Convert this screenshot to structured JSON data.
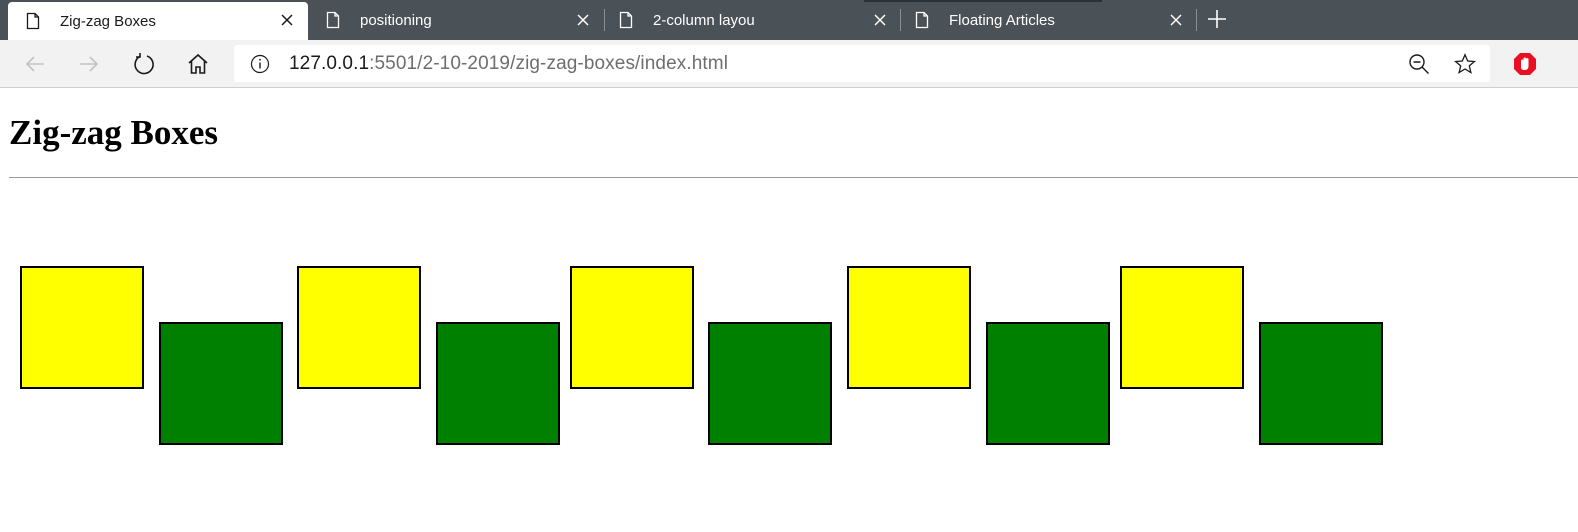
{
  "browser": {
    "tabs": [
      {
        "title": "Zig-zag Boxes",
        "active": true
      },
      {
        "title": "positioning",
        "active": false
      },
      {
        "title": "2-column layou",
        "active": false
      },
      {
        "title": "Floating Articles",
        "active": false
      }
    ],
    "icons": {
      "tab_page": "document-icon",
      "tab_close": "close-icon",
      "new_tab": "plus-icon",
      "back": "back-arrow-icon",
      "forward": "forward-arrow-icon",
      "refresh": "refresh-icon",
      "home": "home-icon",
      "site_info": "info-icon",
      "zoom": "zoom-out-icon",
      "favorite": "star-icon",
      "extension": "adblock-icon"
    },
    "url": {
      "host": "127.0.0.1",
      "rest": ":5501/2-10-2019/zig-zag-boxes/index.html"
    }
  },
  "page": {
    "title": "Zig-zag Boxes",
    "boxes": [
      {
        "color": "#ffff00",
        "row": "up"
      },
      {
        "color": "#008000",
        "row": "down"
      },
      {
        "color": "#ffff00",
        "row": "up"
      },
      {
        "color": "#008000",
        "row": "down"
      },
      {
        "color": "#ffff00",
        "row": "up"
      },
      {
        "color": "#008000",
        "row": "down"
      },
      {
        "color": "#ffff00",
        "row": "up"
      },
      {
        "color": "#008000",
        "row": "down"
      },
      {
        "color": "#ffff00",
        "row": "up"
      },
      {
        "color": "#008000",
        "row": "down"
      }
    ]
  },
  "colors": {
    "tabstrip": "#4a5157",
    "toolbar": "#f2f2f2",
    "box_yellow": "#ffff00",
    "box_green": "#008000",
    "extension_red": "#e81123"
  }
}
